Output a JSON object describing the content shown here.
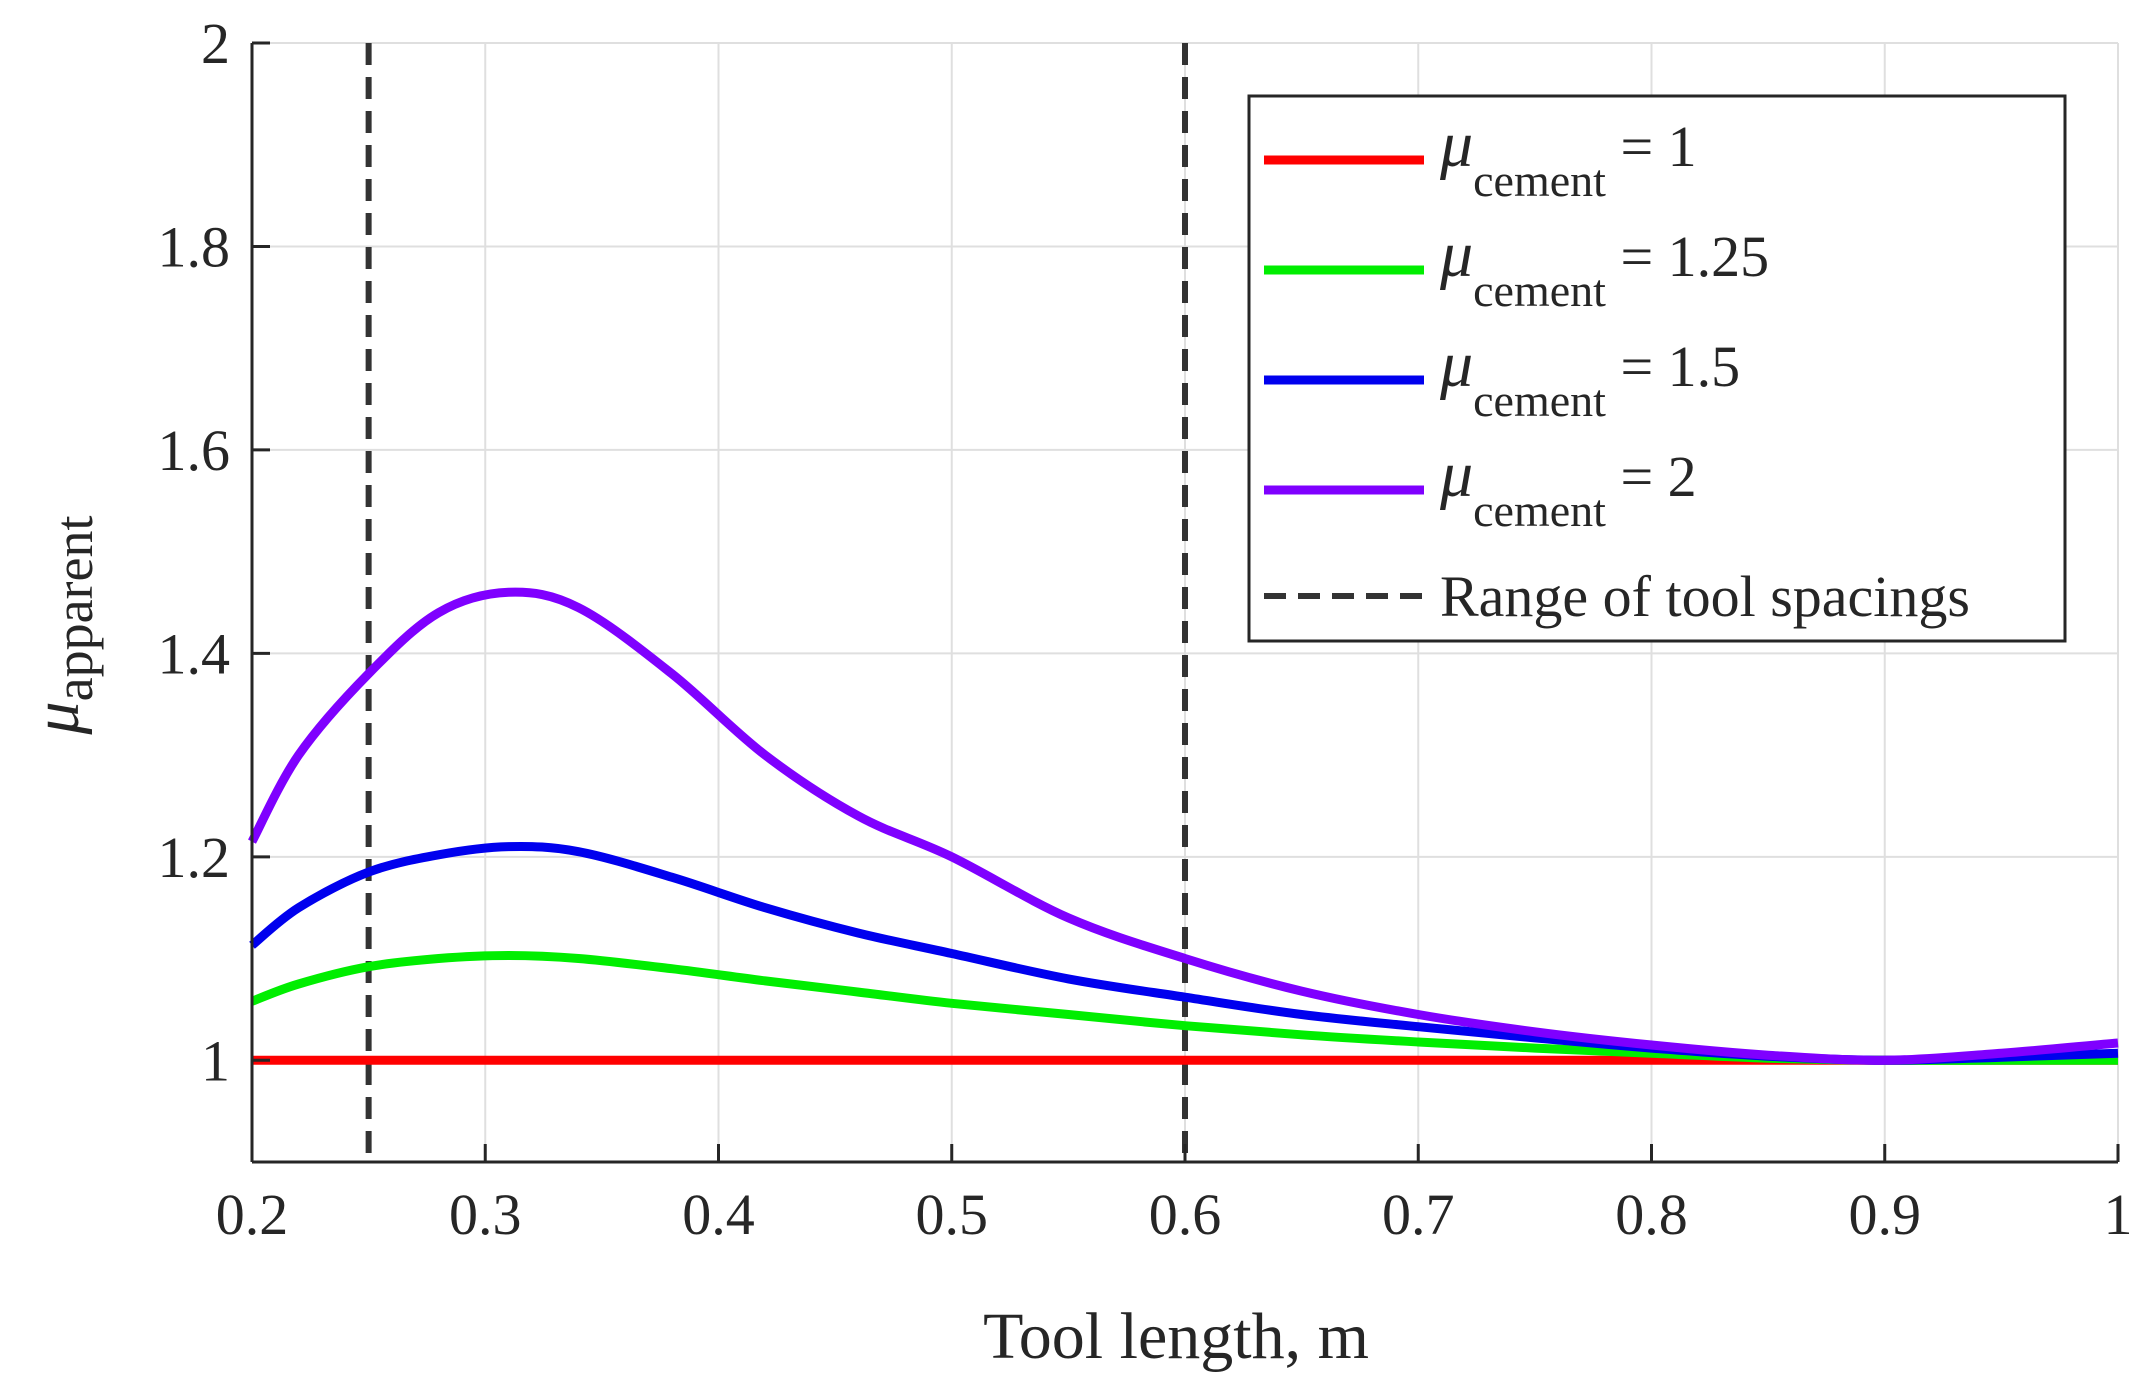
{
  "chart_data": {
    "type": "line",
    "title": "",
    "xlabel": "Tool length, m",
    "ylabel": {
      "symbol": "μ",
      "subscript": "apparent"
    },
    "xlim": [
      0.2,
      1.0
    ],
    "ylim": [
      0.9,
      2.0
    ],
    "x_ticks": [
      0.2,
      0.3,
      0.4,
      0.5,
      0.6,
      0.7,
      0.8,
      0.9,
      1.0
    ],
    "x_tick_labels": [
      "0.2",
      "0.3",
      "0.4",
      "0.5",
      "0.6",
      "0.7",
      "0.8",
      "0.9",
      "1"
    ],
    "y_ticks": [
      1.0,
      1.2,
      1.4,
      1.6,
      1.8,
      2.0
    ],
    "y_tick_labels": [
      "1",
      "1.2",
      "1.4",
      "1.6",
      "1.8",
      "2"
    ],
    "grid": true,
    "legend_placement": "top-right",
    "x": [
      0.2,
      0.22,
      0.25,
      0.28,
      0.31,
      0.34,
      0.38,
      0.42,
      0.46,
      0.5,
      0.55,
      0.6,
      0.65,
      0.7,
      0.75,
      0.8,
      0.85,
      0.9,
      0.95,
      1.0
    ],
    "series": [
      {
        "name": "μ_cement = 1",
        "legend_symbol": "μ",
        "legend_subscript": "cement",
        "legend_value": " = 1",
        "color": "#ff0000",
        "values": [
          1.0,
          1.0,
          1.0,
          1.0,
          1.0,
          1.0,
          1.0,
          1.0,
          1.0,
          1.0,
          1.0,
          1.0,
          1.0,
          1.0,
          1.0,
          1.0,
          1.0,
          1.0,
          1.0,
          1.0
        ]
      },
      {
        "name": "μ_cement = 1.25",
        "legend_symbol": "μ",
        "legend_subscript": "cement",
        "legend_value": " = 1.25",
        "color": "#00ee00",
        "values": [
          1.058,
          1.075,
          1.092,
          1.1,
          1.103,
          1.1,
          1.09,
          1.078,
          1.067,
          1.056,
          1.045,
          1.034,
          1.025,
          1.018,
          1.012,
          1.007,
          1.002,
          1.0,
          1.0,
          1.0
        ]
      },
      {
        "name": "μ_cement = 1.5",
        "legend_symbol": "μ",
        "legend_subscript": "cement",
        "legend_value": " = 1.5",
        "color": "#0000ee",
        "values": [
          1.113,
          1.15,
          1.185,
          1.202,
          1.21,
          1.205,
          1.18,
          1.15,
          1.125,
          1.105,
          1.08,
          1.062,
          1.045,
          1.033,
          1.022,
          1.012,
          1.004,
          1.0,
          1.003,
          1.007
        ]
      },
      {
        "name": "μ_cement = 2",
        "legend_symbol": "μ",
        "legend_subscript": "cement",
        "legend_value": " = 2",
        "color": "#7f00ff",
        "values": [
          1.215,
          1.3,
          1.38,
          1.44,
          1.46,
          1.445,
          1.38,
          1.3,
          1.24,
          1.2,
          1.14,
          1.1,
          1.068,
          1.045,
          1.028,
          1.015,
          1.005,
          1.0,
          1.007,
          1.017
        ]
      }
    ],
    "reference_lines": {
      "name": "Range of tool spacings",
      "color": "#333333",
      "x_values": [
        0.25,
        0.6
      ]
    }
  }
}
